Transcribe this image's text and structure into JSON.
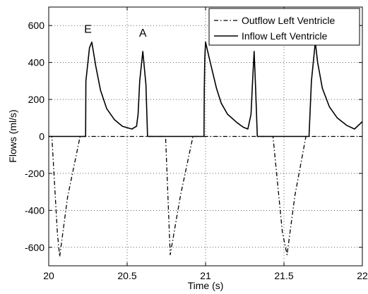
{
  "chart_data": {
    "type": "line",
    "xlabel": "Time (s)",
    "ylabel": "Flows (ml/s)",
    "xlim": [
      20,
      22
    ],
    "ylim": [
      -700,
      700
    ],
    "xticks": [
      "20",
      "20.5",
      "21",
      "21.5",
      "22"
    ],
    "yticks": [
      "-600",
      "-400",
      "-200",
      "0",
      "200",
      "400",
      "600"
    ],
    "grid": true,
    "legend_position": "top-right",
    "annotations": [
      {
        "text": "E",
        "x": 0.25,
        "y": 560
      },
      {
        "text": "A",
        "x": 0.6,
        "y": 540
      }
    ],
    "series": [
      {
        "name": "Outflow Left Ventricle",
        "style": "dash-dot",
        "color": "#000000",
        "x": [
          20.0,
          20.02,
          20.055,
          20.07,
          20.12,
          20.2,
          20.2,
          20.69,
          20.745,
          20.775,
          20.84,
          20.92,
          20.92,
          21.43,
          21.49,
          21.52,
          21.57,
          21.64,
          21.64,
          22.0
        ],
        "y": [
          0,
          0,
          -520,
          -650,
          -330,
          0,
          0,
          0,
          0,
          -640,
          -320,
          0,
          0,
          0,
          -520,
          -640,
          -320,
          0,
          0,
          0
        ]
      },
      {
        "name": "Inflow Left Ventricle",
        "style": "solid",
        "color": "#000000",
        "x": [
          20.0,
          20.235,
          20.237,
          20.26,
          20.275,
          20.3,
          20.33,
          20.37,
          20.42,
          20.47,
          20.53,
          20.56,
          20.57,
          20.58,
          20.6,
          20.62,
          20.63,
          20.99,
          20.992,
          20.995,
          21.0,
          21.03,
          21.07,
          21.1,
          21.14,
          21.2,
          21.24,
          21.27,
          21.29,
          21.3,
          21.31,
          21.32,
          21.33,
          21.35,
          21.35,
          21.66,
          21.675,
          21.7,
          21.715,
          21.745,
          21.79,
          21.84,
          21.9,
          21.95,
          22.0
        ],
        "y": [
          0,
          0,
          300,
          480,
          510,
          380,
          250,
          150,
          90,
          55,
          40,
          55,
          120,
          300,
          460,
          280,
          0,
          0,
          250,
          420,
          510,
          400,
          260,
          180,
          120,
          75,
          50,
          40,
          120,
          300,
          460,
          250,
          0,
          0,
          0,
          0,
          300,
          510,
          400,
          260,
          160,
          100,
          60,
          40,
          80
        ]
      }
    ]
  }
}
